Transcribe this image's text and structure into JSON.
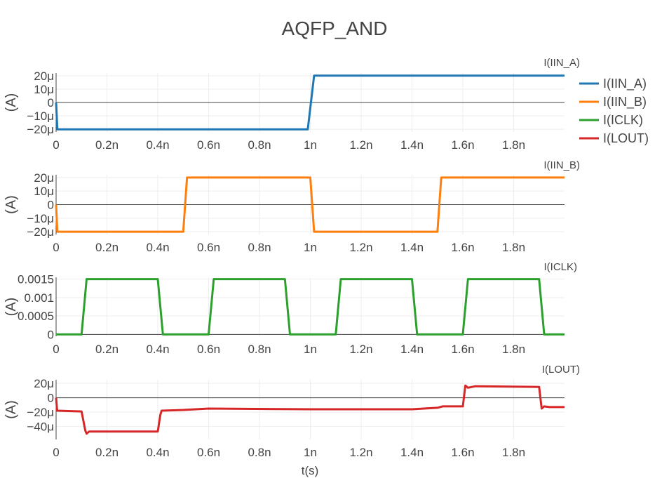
{
  "chart_data": {
    "type": "line",
    "title": "AQFP_AND",
    "xlabel": "t(s)",
    "xlim": [
      0,
      2.0
    ],
    "x_ticks": [
      0,
      0.2,
      0.4,
      0.6,
      0.8,
      1.0,
      1.2,
      1.4,
      1.6,
      1.8
    ],
    "x_tick_labels": [
      "0",
      "0.2n",
      "0.4n",
      "0.6n",
      "0.8n",
      "1n",
      "1.2n",
      "1.4n",
      "1.6n",
      "1.8n"
    ],
    "legend": {
      "placement": "top-right",
      "entries": [
        "I(IIN_A)",
        "I(IIN_B)",
        "I(ICLK)",
        "I(LOUT)"
      ]
    },
    "grid": true,
    "subplots": [
      {
        "annotation": "I(IIN_A)",
        "ylabel": "(A)",
        "ylim": [
          -22,
          22
        ],
        "y_ticks": [
          20,
          10,
          0,
          -10,
          -20
        ],
        "y_tick_labels": [
          "20μ",
          "10μ",
          "0",
          "−10μ",
          "−20μ"
        ],
        "series": [
          {
            "name": "I(IIN_A)",
            "color": "#1f77b4",
            "x": [
              0,
              0.005,
              0.99,
              1.015,
              2.0
            ],
            "y": [
              0,
              -20,
              -20,
              20,
              20
            ]
          }
        ]
      },
      {
        "annotation": "I(IIN_B)",
        "ylabel": "(A)",
        "ylim": [
          -22,
          22
        ],
        "y_ticks": [
          20,
          10,
          0,
          -10,
          -20
        ],
        "y_tick_labels": [
          "20μ",
          "10μ",
          "0",
          "−10μ",
          "−20μ"
        ],
        "series": [
          {
            "name": "I(IIN_B)",
            "color": "#ff7f0e",
            "x": [
              0,
              0.005,
              0.5,
              0.515,
              1.0,
              1.015,
              1.5,
              1.515,
              2.0
            ],
            "y": [
              0,
              -20,
              -20,
              20,
              20,
              -20,
              -20,
              20,
              20
            ]
          }
        ]
      },
      {
        "annotation": "I(ICLK)",
        "ylabel": "(A)",
        "ylim": [
          -5e-05,
          0.00155
        ],
        "y_ticks": [
          0.0015,
          0.001,
          0.0005,
          0
        ],
        "y_tick_labels": [
          "0.0015",
          "0.001",
          "0.0005",
          "0"
        ],
        "series": [
          {
            "name": "I(ICLK)",
            "color": "#2ca02c",
            "x": [
              0,
              0.1,
              0.12,
              0.4,
              0.42,
              0.6,
              0.62,
              0.9,
              0.92,
              1.1,
              1.12,
              1.4,
              1.42,
              1.6,
              1.62,
              1.9,
              1.92,
              2.0
            ],
            "y": [
              0,
              0,
              0.0015,
              0.0015,
              0,
              0,
              0.0015,
              0.0015,
              0,
              0,
              0.0015,
              0.0015,
              0,
              0,
              0.0015,
              0.0015,
              0,
              0
            ]
          }
        ]
      },
      {
        "annotation": "I(LOUT)",
        "ylabel": "(A)",
        "ylim": [
          -58,
          25
        ],
        "y_ticks": [
          20,
          0,
          -20,
          -40
        ],
        "y_tick_labels": [
          "20μ",
          "0",
          "−20μ",
          "−40μ"
        ],
        "series": [
          {
            "name": "I(LOUT)",
            "color": "#d62728",
            "x": [
              0,
              0.004,
              0.1,
              0.115,
              0.12,
              0.13,
              0.4,
              0.41,
              0.415,
              0.5,
              0.6,
              1.0,
              1.4,
              1.5,
              1.52,
              1.6,
              1.61,
              1.62,
              1.65,
              1.9,
              1.91,
              1.92,
              1.94,
              2.0
            ],
            "y": [
              0,
              -18,
              -19,
              -46,
              -50,
              -47,
              -47,
              -24,
              -18,
              -17,
              -15,
              -16,
              -16,
              -14,
              -12,
              -12,
              17,
              14,
              16,
              15,
              -15,
              -12,
              -13,
              -13
            ]
          }
        ]
      }
    ]
  }
}
